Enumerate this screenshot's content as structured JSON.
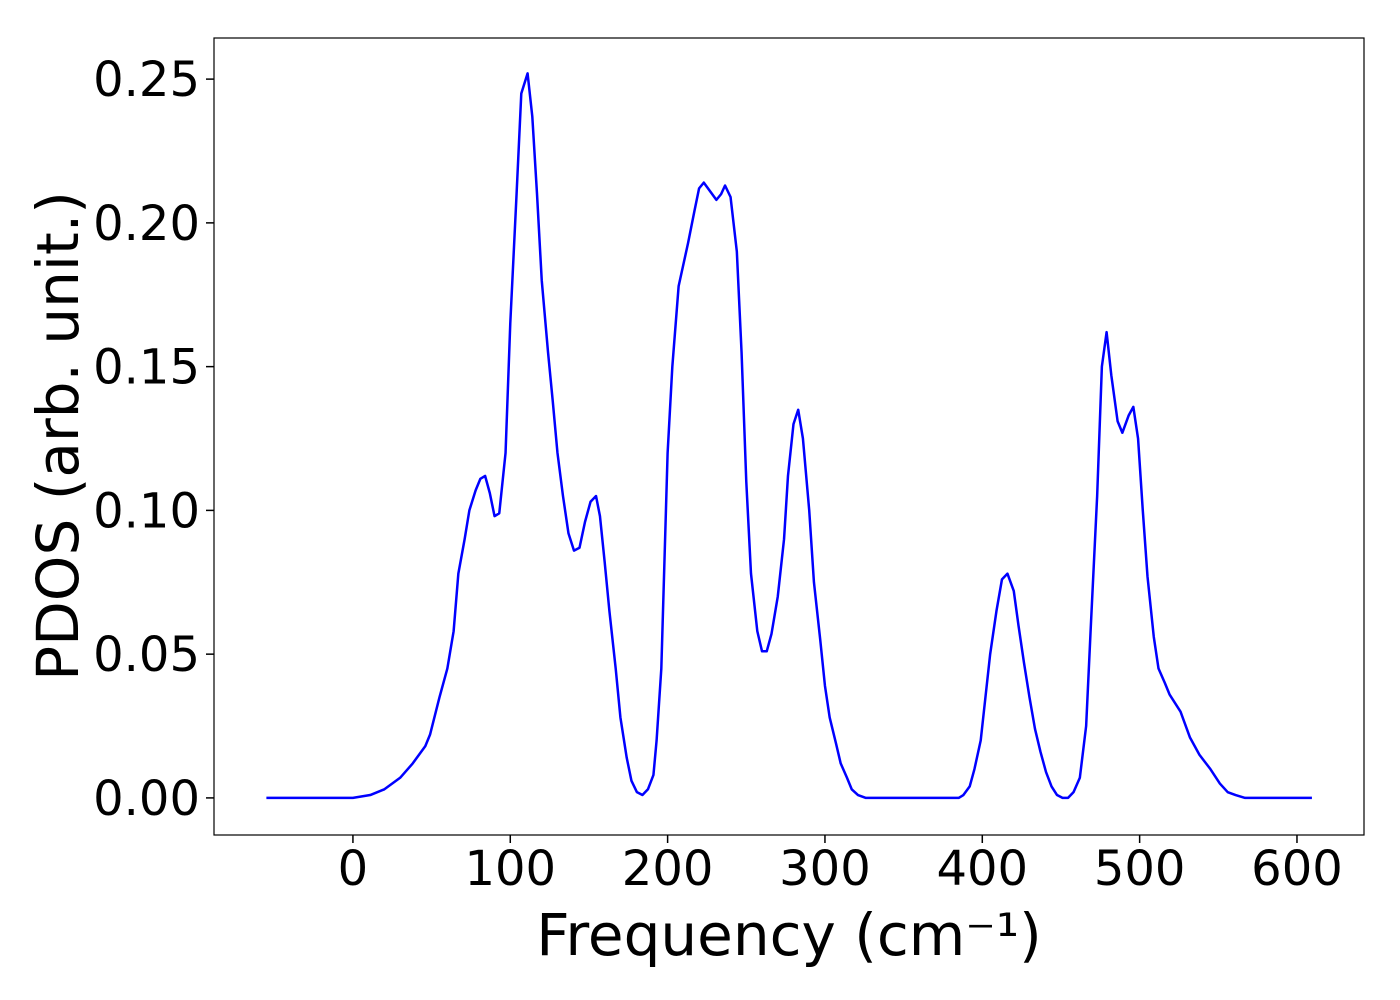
{
  "chart_data": {
    "type": "line",
    "xlabel": "Frequency (cm⁻¹)",
    "ylabel": "PDOS (arb. unit.)",
    "xlim": [
      -88.3,
      642.6
    ],
    "ylim": [
      -0.0129,
      0.2643
    ],
    "xticks": [
      0,
      100,
      200,
      300,
      400,
      500,
      600
    ],
    "yticks": [
      {
        "value": 0,
        "label": "0.00"
      },
      {
        "value": 0.05,
        "label": "0.05"
      },
      {
        "value": 0.1,
        "label": "0.10"
      },
      {
        "value": 0.15,
        "label": "0.15"
      },
      {
        "value": 0.2,
        "label": "0.20"
      },
      {
        "value": 0.25,
        "label": "0.25"
      }
    ],
    "grid": false,
    "x": [
      -55,
      0,
      11,
      20,
      30,
      38,
      46,
      49,
      55,
      60,
      64,
      67,
      71,
      74,
      78,
      81,
      84,
      87,
      90,
      93,
      97,
      100,
      104,
      107,
      111,
      114,
      117,
      120,
      124,
      127,
      130,
      133.5,
      137,
      140.5,
      144,
      147.5,
      151,
      154.5,
      157,
      160,
      163,
      167,
      170,
      174,
      177,
      180.5,
      184,
      187.5,
      191,
      193,
      196,
      200,
      203,
      207,
      213,
      217,
      220,
      223,
      227,
      231,
      234,
      236.5,
      240,
      244,
      247,
      250,
      253,
      257,
      260,
      263,
      266,
      270,
      274,
      276.5,
      280,
      283,
      286,
      290,
      293,
      297,
      300,
      303,
      307,
      310,
      314,
      317,
      321,
      326,
      385,
      388,
      392,
      395,
      399,
      402,
      405,
      409,
      412.5,
      416,
      420,
      423,
      426.5,
      430,
      433.5,
      437,
      440.5,
      444,
      447.5,
      451,
      454.5,
      458,
      462,
      466,
      469,
      473,
      476,
      479,
      482,
      486,
      489,
      493,
      496,
      499,
      502,
      505,
      509,
      512,
      516,
      519,
      526,
      532,
      538,
      545,
      551,
      556,
      561,
      567,
      609.5
    ],
    "series": [
      {
        "name": "PDOS",
        "color": "#0000ff",
        "values": [
          0,
          0,
          0.001,
          0.003,
          0.007,
          0.012,
          0.018,
          0.022,
          0.035,
          0.045,
          0.058,
          0.078,
          0.09,
          0.1,
          0.107,
          0.111,
          0.112,
          0.106,
          0.098,
          0.099,
          0.12,
          0.165,
          0.21,
          0.245,
          0.252,
          0.237,
          0.21,
          0.18,
          0.155,
          0.138,
          0.12,
          0.105,
          0.092,
          0.086,
          0.087,
          0.096,
          0.103,
          0.105,
          0.098,
          0.082,
          0.065,
          0.045,
          0.028,
          0.014,
          0.006,
          0.002,
          0.001,
          0.003,
          0.008,
          0.02,
          0.045,
          0.12,
          0.15,
          0.178,
          0.193,
          0.204,
          0.212,
          0.214,
          0.211,
          0.208,
          0.21,
          0.213,
          0.209,
          0.19,
          0.155,
          0.11,
          0.078,
          0.058,
          0.051,
          0.051,
          0.057,
          0.07,
          0.09,
          0.112,
          0.13,
          0.135,
          0.125,
          0.1,
          0.075,
          0.055,
          0.039,
          0.028,
          0.019,
          0.012,
          0.007,
          0.003,
          0.001,
          0,
          0,
          0.001,
          0.004,
          0.01,
          0.02,
          0.035,
          0.05,
          0.065,
          0.076,
          0.078,
          0.072,
          0.06,
          0.047,
          0.035,
          0.024,
          0.016,
          0.009,
          0.004,
          0.001,
          0,
          0,
          0.002,
          0.007,
          0.025,
          0.06,
          0.105,
          0.15,
          0.162,
          0.147,
          0.131,
          0.127,
          0.133,
          0.136,
          0.125,
          0.1,
          0.077,
          0.056,
          0.045,
          0.04,
          0.036,
          0.03,
          0.021,
          0.015,
          0.01,
          0.005,
          0.002,
          0.001,
          0,
          0
        ]
      }
    ]
  }
}
